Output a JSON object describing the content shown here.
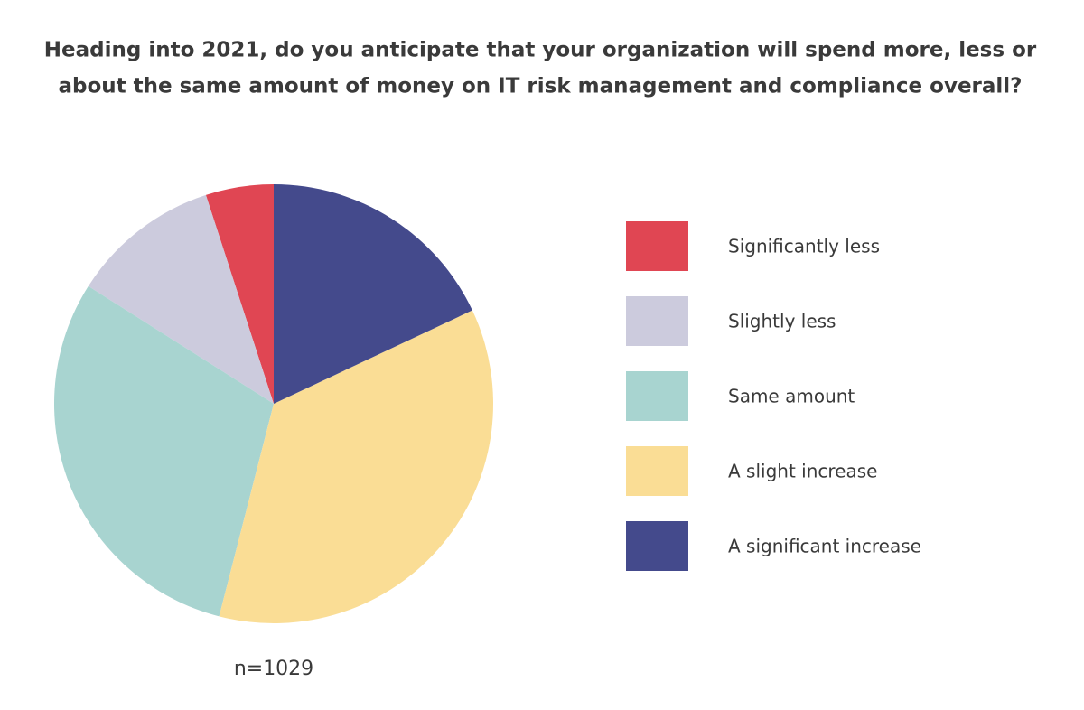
{
  "chart_data": {
    "type": "pie",
    "title": [
      "Heading into 2021, do you anticipate that your organization will spend more, less or",
      "about the same amount of money on IT risk management and compliance overall?"
    ],
    "categories": [
      "Significantly less",
      "Slightly less",
      "Same amount",
      "A slight increase",
      "A significant increase"
    ],
    "values": [
      5,
      11,
      30,
      36,
      18
    ],
    "colors": [
      "#e04653",
      "#cccbdd",
      "#a8d4d0",
      "#fadd95",
      "#444a8c"
    ],
    "annotation": "n=1029",
    "legend": "right"
  }
}
